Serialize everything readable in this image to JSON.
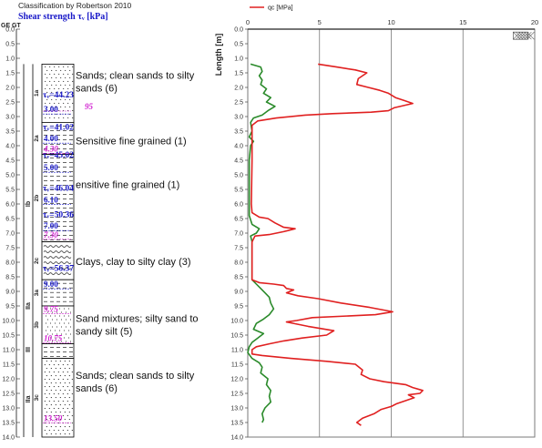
{
  "header": {
    "classification": "Classification by Robertson 2010",
    "shear_label": "Shear strength τᵥ [kPa]",
    "geology_col_label": "GE GT"
  },
  "chart_data": {
    "type": "line",
    "title": "",
    "ylabel": "Length [m]",
    "ylim": [
      0,
      14
    ],
    "y_ticks": [
      "0.0",
      "0.5",
      "1.0",
      "1.5",
      "2.0",
      "2.5",
      "3.0",
      "3.5",
      "4.0",
      "4.5",
      "5.0",
      "5.5",
      "6.0",
      "6.5",
      "7.0",
      "7.5",
      "8.0",
      "8.5",
      "9.0",
      "9.5",
      "10.0",
      "10.5",
      "11.0",
      "11.5",
      "12.0",
      "12.5",
      "13.0",
      "13.5",
      "14.0"
    ],
    "xlim": [
      0,
      20
    ],
    "x_ticks": [
      "0",
      "5",
      "10",
      "15",
      "20"
    ],
    "legend": "top-left",
    "series": [
      {
        "name": "qc [MPa]",
        "color": "#e02020",
        "points": [
          [
            4.9,
            1.2
          ],
          [
            6.2,
            1.3
          ],
          [
            7.5,
            1.4
          ],
          [
            8.3,
            1.5
          ],
          [
            7.7,
            1.7
          ],
          [
            7.6,
            1.9
          ],
          [
            8.4,
            2.0
          ],
          [
            9.2,
            2.1
          ],
          [
            9.8,
            2.2
          ],
          [
            10.3,
            2.35
          ],
          [
            10.9,
            2.45
          ],
          [
            11.5,
            2.55
          ],
          [
            10.2,
            2.7
          ],
          [
            9.8,
            2.8
          ],
          [
            8.6,
            2.85
          ],
          [
            5.9,
            2.9
          ],
          [
            4.0,
            2.95
          ],
          [
            2.0,
            3.05
          ],
          [
            0.7,
            3.15
          ],
          [
            0.3,
            3.3
          ],
          [
            0.3,
            4.5
          ],
          [
            0.25,
            6.0
          ],
          [
            0.3,
            6.3
          ],
          [
            0.8,
            6.45
          ],
          [
            1.4,
            6.5
          ],
          [
            1.9,
            6.65
          ],
          [
            2.5,
            6.8
          ],
          [
            3.3,
            6.85
          ],
          [
            2.5,
            6.95
          ],
          [
            1.5,
            7.05
          ],
          [
            0.5,
            7.1
          ],
          [
            0.3,
            7.3
          ],
          [
            0.3,
            8.6
          ],
          [
            0.8,
            8.7
          ],
          [
            1.8,
            8.75
          ],
          [
            2.5,
            8.8
          ],
          [
            2.7,
            8.9
          ],
          [
            3.2,
            8.95
          ],
          [
            2.7,
            9.05
          ],
          [
            3.5,
            9.15
          ],
          [
            4.9,
            9.25
          ],
          [
            6.5,
            9.4
          ],
          [
            8.5,
            9.55
          ],
          [
            10.1,
            9.7
          ],
          [
            8.9,
            9.8
          ],
          [
            4.5,
            9.9
          ],
          [
            3.4,
            10.0
          ],
          [
            2.7,
            10.05
          ],
          [
            4.2,
            10.2
          ],
          [
            6.0,
            10.35
          ],
          [
            5.5,
            10.5
          ],
          [
            3.8,
            10.6
          ],
          [
            2.5,
            10.7
          ],
          [
            1.5,
            10.8
          ],
          [
            0.6,
            10.9
          ],
          [
            0.3,
            11.0
          ],
          [
            0.3,
            11.15
          ],
          [
            1.0,
            11.2
          ],
          [
            3.0,
            11.3
          ],
          [
            5.5,
            11.4
          ],
          [
            7.5,
            11.5
          ],
          [
            8.0,
            11.7
          ],
          [
            7.9,
            11.85
          ],
          [
            8.5,
            12.0
          ],
          [
            9.5,
            12.1
          ],
          [
            11.0,
            12.2
          ],
          [
            11.5,
            12.3
          ],
          [
            12.2,
            12.4
          ],
          [
            12.0,
            12.5
          ],
          [
            11.2,
            12.55
          ],
          [
            11.6,
            12.65
          ],
          [
            11.0,
            12.75
          ],
          [
            10.4,
            12.85
          ],
          [
            10.0,
            12.95
          ],
          [
            9.3,
            13.05
          ],
          [
            8.8,
            13.2
          ],
          [
            8.0,
            13.35
          ],
          [
            7.6,
            13.5
          ],
          [
            7.9,
            13.6
          ]
        ]
      },
      {
        "color": "#2a8a2a",
        "points": [
          [
            0.2,
            1.2
          ],
          [
            0.9,
            1.3
          ],
          [
            1.0,
            1.45
          ],
          [
            0.8,
            1.6
          ],
          [
            1.0,
            1.75
          ],
          [
            0.9,
            1.9
          ],
          [
            1.3,
            2.05
          ],
          [
            1.1,
            2.2
          ],
          [
            1.6,
            2.35
          ],
          [
            1.3,
            2.5
          ],
          [
            1.9,
            2.65
          ],
          [
            1.4,
            2.8
          ],
          [
            1.0,
            2.95
          ],
          [
            0.4,
            3.05
          ],
          [
            0.2,
            3.2
          ],
          [
            0.3,
            3.5
          ],
          [
            0.1,
            3.7
          ],
          [
            0.4,
            3.85
          ],
          [
            0.2,
            4.0
          ],
          [
            0.1,
            4.5
          ],
          [
            0.1,
            6.4
          ],
          [
            0.3,
            6.7
          ],
          [
            0.8,
            6.85
          ],
          [
            0.6,
            7.0
          ],
          [
            0.2,
            7.1
          ],
          [
            0.3,
            7.3
          ],
          [
            0.3,
            8.6
          ],
          [
            0.6,
            8.75
          ],
          [
            0.9,
            8.9
          ],
          [
            1.2,
            9.05
          ],
          [
            1.5,
            9.2
          ],
          [
            1.6,
            9.4
          ],
          [
            1.8,
            9.6
          ],
          [
            1.5,
            9.8
          ],
          [
            1.1,
            9.95
          ],
          [
            0.6,
            10.1
          ],
          [
            0.4,
            10.3
          ],
          [
            1.1,
            10.45
          ],
          [
            0.7,
            10.6
          ],
          [
            0.3,
            10.75
          ],
          [
            0.1,
            10.9
          ],
          [
            0.0,
            11.1
          ],
          [
            0.3,
            11.3
          ],
          [
            0.8,
            11.45
          ],
          [
            1.0,
            11.6
          ],
          [
            0.9,
            11.8
          ],
          [
            1.4,
            12.0
          ],
          [
            1.3,
            12.2
          ],
          [
            1.6,
            12.4
          ],
          [
            1.5,
            12.6
          ],
          [
            1.6,
            12.8
          ],
          [
            1.2,
            13.0
          ],
          [
            1.0,
            13.2
          ],
          [
            1.1,
            13.4
          ],
          [
            1.0,
            13.5
          ]
        ]
      }
    ]
  },
  "log": {
    "layers": [
      {
        "top": 1.2,
        "bottom": 3.2,
        "pattern": "dots",
        "unit": "1a"
      },
      {
        "top": 3.2,
        "bottom": 4.3,
        "pattern": "dash",
        "unit": "2a"
      },
      {
        "top": 4.3,
        "bottom": 7.3,
        "pattern": "dash",
        "unit": "2b"
      },
      {
        "top": 7.3,
        "bottom": 8.6,
        "pattern": "wave",
        "unit": "2c"
      },
      {
        "top": 8.6,
        "bottom": 9.5,
        "pattern": "dash",
        "unit": "3a"
      },
      {
        "top": 9.5,
        "bottom": 10.8,
        "pattern": "dots",
        "unit": "3b"
      },
      {
        "top": 10.8,
        "bottom": 11.3,
        "pattern": "dash",
        "unit": ""
      },
      {
        "top": 11.3,
        "bottom": 14.0,
        "pattern": "dots",
        "unit": "3c"
      }
    ],
    "unit_codes": [
      {
        "text": "Ib",
        "depth": 6.0
      },
      {
        "text": "IIa",
        "depth": 9.5
      },
      {
        "text": "III",
        "depth": 11.0
      },
      {
        "text": "IIa",
        "depth": 12.7
      }
    ],
    "soil_labels": [
      {
        "lines": [
          "Sands; clean sands to silty",
          "sands (6)"
        ],
        "depth": 1.7
      },
      {
        "lines": [
          "Sensitive fine grained (1)"
        ],
        "depth": 3.95
      },
      {
        "lines": [
          "ensitive fine grained (1)"
        ],
        "depth": 5.45
      },
      {
        "lines": [
          "Clays, clay to silty clay (3)"
        ],
        "depth": 8.1
      },
      {
        "lines": [
          "Sand mixtures; silty sand to",
          "sandy silt (5)"
        ],
        "depth": 10.05
      },
      {
        "lines": [
          "Sands; clean sands to silty",
          "sands (6)"
        ],
        "depth": 12.0
      }
    ],
    "shear_values": [
      {
        "text": "τᵥ=44.23",
        "depth": 2.35
      },
      {
        "text": "τᵥ=41.02",
        "depth": 3.45
      },
      {
        "text": "τᵥ=45.02",
        "depth": 4.4
      },
      {
        "text": "τᵥ=46.04",
        "depth": 5.55
      },
      {
        "text": "τᵥ=50.36",
        "depth": 6.45
      },
      {
        "text": "τᵥ=56.37",
        "depth": 8.3
      }
    ],
    "sample_depths": [
      {
        "text": "3.00",
        "depth": 2.85,
        "color": "#1818c8"
      },
      {
        "text": "4.00",
        "depth": 3.85,
        "color": "#1818c8"
      },
      {
        "text": "5.00",
        "depth": 4.85,
        "color": "#1818c8"
      },
      {
        "text": "6.10",
        "depth": 5.95,
        "color": "#1818c8"
      },
      {
        "text": "7.00",
        "depth": 6.85,
        "color": "#1818c8"
      },
      {
        "text": "9.00",
        "depth": 8.85,
        "color": "#1818c8"
      },
      {
        "text": "95",
        "depth": 2.75,
        "color": "#d020d0",
        "dx": 46
      },
      {
        "text": "4.30",
        "depth": 4.2,
        "color": "#d020d0"
      },
      {
        "text": "7.30",
        "depth": 7.15,
        "color": "#d020d0"
      },
      {
        "text": "9.75",
        "depth": 9.7,
        "color": "#d020d0"
      },
      {
        "text": "10.75",
        "depth": 10.7,
        "color": "#d020d0"
      },
      {
        "text": "13.50",
        "depth": 13.45,
        "color": "#d020d0"
      }
    ]
  },
  "colors": {
    "grid": "#7a7a7a",
    "depth_text": "#1818c8",
    "sample_text": "#d020d0",
    "qc_line": "#e02020",
    "fs_line": "#2a8a2a",
    "axis_tick": "#333333"
  }
}
